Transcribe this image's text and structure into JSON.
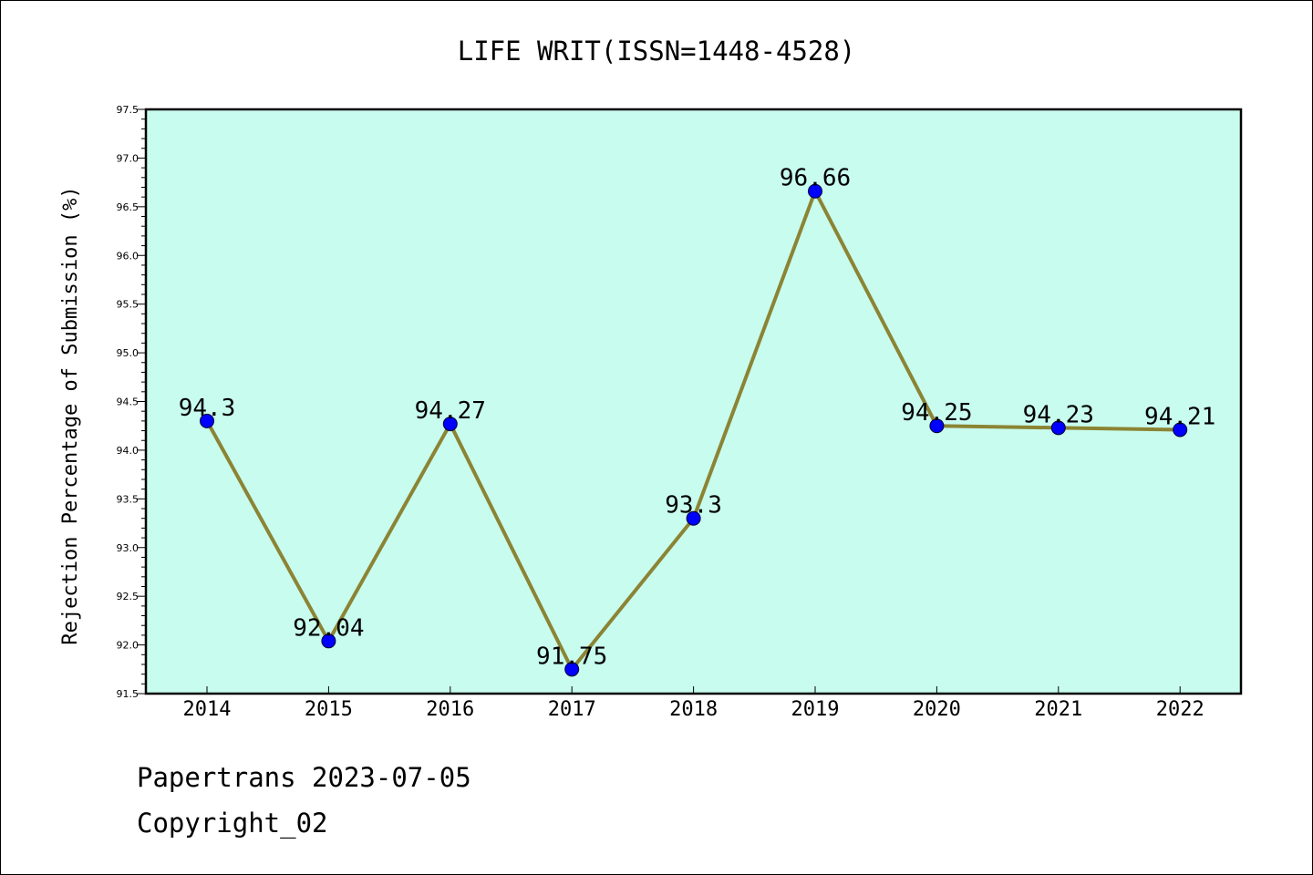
{
  "chart_data": {
    "type": "line",
    "title": "LIFE WRIT(ISSN=1448-4528)",
    "xlabel": "",
    "ylabel": "Rejection Percentage of Submission (%)",
    "categories": [
      "2014",
      "2015",
      "2016",
      "2017",
      "2018",
      "2019",
      "2020",
      "2021",
      "2022"
    ],
    "series": [
      {
        "values": [
          94.3,
          92.04,
          94.27,
          91.75,
          93.3,
          96.66,
          94.25,
          94.23,
          94.21
        ],
        "labels": [
          "94.3",
          "92.04",
          "94.27",
          "91.75",
          "93.3",
          "96.66",
          "94.25",
          "94.23",
          "94.21"
        ]
      }
    ],
    "ylim": [
      91.5,
      97.5
    ],
    "yticks": [
      "91.5",
      "92.0",
      "92.5",
      "93.0",
      "93.5",
      "94.0",
      "94.5",
      "95.0",
      "95.5",
      "96.0",
      "96.5",
      "97.0",
      "97.5"
    ],
    "grid": false,
    "legend": "none",
    "colors": {
      "plot_background": "#c8fcee",
      "line": "#8b8434",
      "marker": "#0000ff"
    }
  },
  "footer": {
    "source": "Papertrans 2023-07-05",
    "copyright": "Copyright_02"
  }
}
